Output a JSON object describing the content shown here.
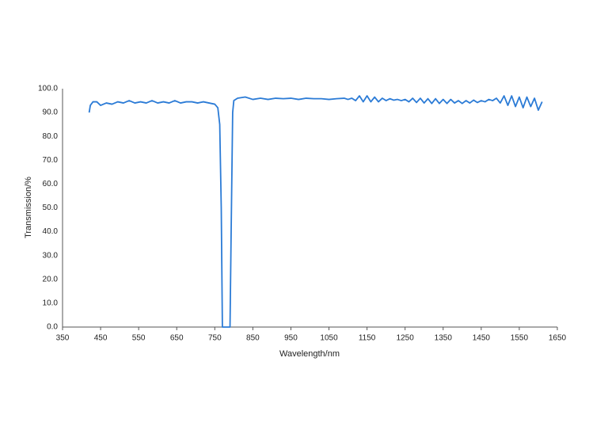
{
  "chart_data": {
    "type": "line",
    "x_label": "Wavelength/nm",
    "y_label": "Transmission/%",
    "xlim": [
      350,
      1650
    ],
    "xticks": [
      350,
      450,
      550,
      650,
      750,
      850,
      950,
      1050,
      1150,
      1250,
      1350,
      1450,
      1550,
      1650
    ],
    "ylim": [
      0,
      100
    ],
    "yticks": [
      {
        "value": 0,
        "label": "0.0"
      },
      {
        "value": 10,
        "label": "10.0"
      },
      {
        "value": 20,
        "label": "20.0"
      },
      {
        "value": 30,
        "label": "30.0"
      },
      {
        "value": 40,
        "label": "40.0"
      },
      {
        "value": 50,
        "label": "50.0"
      },
      {
        "value": 60,
        "label": "60.0"
      },
      {
        "value": 70,
        "label": "70.0"
      },
      {
        "value": 80,
        "label": "80.0"
      },
      {
        "value": 90,
        "label": "90.0"
      },
      {
        "value": 100,
        "label": "100.0"
      }
    ],
    "grid": false,
    "series": [
      {
        "color": "#2b7bd6",
        "x": [
          420,
          423,
          430,
          440,
          450,
          465,
          480,
          495,
          510,
          525,
          540,
          555,
          570,
          585,
          600,
          615,
          630,
          645,
          660,
          675,
          690,
          705,
          720,
          735,
          750,
          758,
          763,
          767,
          770,
          790,
          793,
          797,
          800,
          810,
          830,
          850,
          870,
          890,
          910,
          930,
          950,
          970,
          990,
          1010,
          1030,
          1050,
          1070,
          1090,
          1100,
          1110,
          1120,
          1130,
          1140,
          1150,
          1160,
          1170,
          1180,
          1190,
          1200,
          1210,
          1220,
          1230,
          1240,
          1250,
          1260,
          1270,
          1280,
          1290,
          1300,
          1310,
          1320,
          1330,
          1340,
          1350,
          1360,
          1370,
          1380,
          1390,
          1400,
          1410,
          1420,
          1430,
          1440,
          1450,
          1460,
          1470,
          1480,
          1490,
          1500,
          1510,
          1520,
          1530,
          1540,
          1550,
          1560,
          1570,
          1580,
          1590,
          1600,
          1610
        ],
        "values": [
          90,
          93,
          94.5,
          94.5,
          93,
          94,
          93.5,
          94.5,
          94,
          95,
          94,
          94.5,
          94,
          95,
          94,
          94.5,
          94,
          95,
          94,
          94.5,
          94.5,
          94,
          94.5,
          94,
          93.5,
          92,
          85,
          50,
          0,
          0,
          40,
          90,
          95,
          96,
          96.5,
          95.5,
          96,
          95.5,
          96,
          95.8,
          96,
          95.5,
          96,
          95.8,
          95.8,
          95.5,
          95.8,
          96,
          95.5,
          96,
          95,
          97,
          94.5,
          97,
          94.5,
          96.5,
          94.5,
          96,
          95,
          95.8,
          95.2,
          95.5,
          95,
          95.5,
          94.5,
          96,
          94.2,
          96,
          94,
          95.8,
          93.8,
          95.8,
          93.8,
          95.5,
          93.8,
          95.5,
          94,
          95,
          93.8,
          95,
          94,
          95.2,
          94.2,
          95,
          94.5,
          95.5,
          95,
          96,
          94,
          97,
          93,
          97,
          92.5,
          96.5,
          92,
          96.5,
          92.5,
          96,
          91,
          94.5
        ]
      }
    ]
  }
}
